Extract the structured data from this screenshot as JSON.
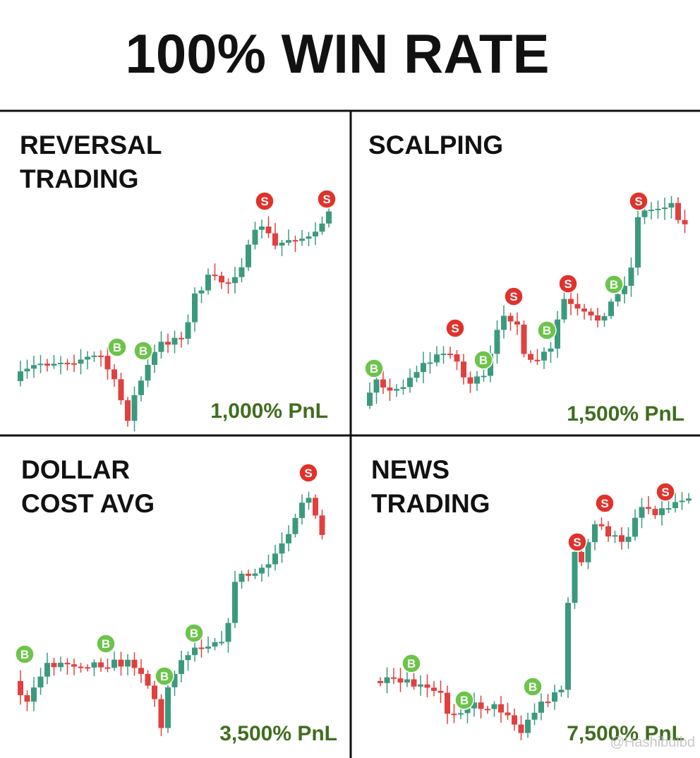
{
  "title": "100% WIN RATE",
  "panels": [
    {
      "title_lines": [
        "REVERSAL",
        "TRADING"
      ],
      "pnl": "1,000% PnL",
      "markers": [
        "S",
        "S",
        "B",
        "B"
      ]
    },
    {
      "title_lines": [
        "SCALPING"
      ],
      "pnl": "1,500% PnL",
      "markers": [
        "B",
        "B",
        "B",
        "B",
        "S",
        "S",
        "S",
        "S"
      ]
    },
    {
      "title_lines": [
        "DOLLAR",
        "COST AVG"
      ],
      "pnl": "3,500% PnL",
      "markers": [
        "B",
        "B",
        "B",
        "B",
        "S"
      ]
    },
    {
      "title_lines": [
        "NEWS",
        "TRADING"
      ],
      "pnl": "7,500% PnL",
      "markers": [
        "B",
        "B",
        "B",
        "S",
        "S",
        "S"
      ]
    }
  ],
  "watermark": "@Hashibulbd"
}
